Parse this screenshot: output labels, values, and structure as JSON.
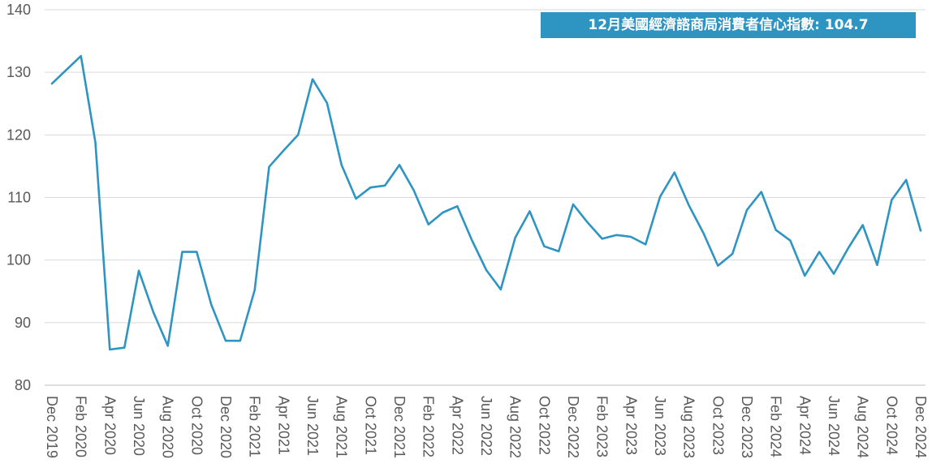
{
  "chart_data": {
    "type": "line",
    "title": "",
    "xlabel": "",
    "ylabel": "",
    "ylim": [
      80,
      140
    ],
    "yticks": [
      80,
      90,
      100,
      110,
      120,
      130,
      140
    ],
    "grid": "horizontal",
    "line_color": "#2e94c2",
    "annotation": {
      "text": "12月美國經濟諮商局消費者信心指數: 104.7",
      "background": "#2e94c2",
      "color": "#ffffff"
    },
    "x_tick_labels": [
      "Dec 2019",
      "Feb 2020",
      "Apr 2020",
      "Jun 2020",
      "Aug 2020",
      "Oct 2020",
      "Dec 2020",
      "Feb 2021",
      "Apr 2021",
      "Jun 2021",
      "Aug 2021",
      "Oct 2021",
      "Dec 2021",
      "Feb 2022",
      "Apr 2022",
      "Jun 2022",
      "Aug 2022",
      "Oct 2022",
      "Dec 2022",
      "Feb 2023",
      "Apr 2023",
      "Jun 2023",
      "Aug 2023",
      "Oct 2023",
      "Dec 2023",
      "Feb 2024",
      "Apr 2024",
      "Jun 2024",
      "Aug 2024",
      "Oct 2024",
      "Dec 2024"
    ],
    "x": [
      "Dec 2019",
      "Jan 2020",
      "Feb 2020",
      "Mar 2020",
      "Apr 2020",
      "May 2020",
      "Jun 2020",
      "Jul 2020",
      "Aug 2020",
      "Sep 2020",
      "Oct 2020",
      "Nov 2020",
      "Dec 2020",
      "Jan 2021",
      "Feb 2021",
      "Mar 2021",
      "Apr 2021",
      "May 2021",
      "Jun 2021",
      "Jul 2021",
      "Aug 2021",
      "Sep 2021",
      "Oct 2021",
      "Nov 2021",
      "Dec 2021",
      "Jan 2022",
      "Feb 2022",
      "Mar 2022",
      "Apr 2022",
      "May 2022",
      "Jun 2022",
      "Jul 2022",
      "Aug 2022",
      "Sep 2022",
      "Oct 2022",
      "Nov 2022",
      "Dec 2022",
      "Jan 2023",
      "Feb 2023",
      "Mar 2023",
      "Apr 2023",
      "May 2023",
      "Jun 2023",
      "Jul 2023",
      "Aug 2023",
      "Sep 2023",
      "Oct 2023",
      "Nov 2023",
      "Dec 2023",
      "Jan 2024",
      "Feb 2024",
      "Mar 2024",
      "Apr 2024",
      "May 2024",
      "Jun 2024",
      "Jul 2024",
      "Aug 2024",
      "Sep 2024",
      "Oct 2024",
      "Nov 2024",
      "Dec 2024"
    ],
    "series": [
      {
        "values": [
          128.2,
          130.4,
          132.6,
          118.8,
          85.7,
          86.0,
          98.3,
          91.7,
          86.3,
          101.3,
          101.3,
          92.9,
          87.1,
          87.1,
          95.2,
          114.9,
          117.5,
          120.0,
          128.9,
          125.1,
          115.2,
          109.8,
          111.6,
          111.9,
          115.2,
          111.1,
          105.7,
          107.6,
          108.6,
          103.2,
          98.4,
          95.3,
          103.6,
          107.8,
          102.2,
          101.4,
          108.9,
          106.0,
          103.4,
          104.0,
          103.7,
          102.5,
          110.1,
          114.0,
          108.7,
          104.3,
          99.1,
          101.0,
          108.0,
          110.9,
          104.8,
          103.1,
          97.5,
          101.3,
          97.8,
          101.9,
          105.6,
          99.2,
          109.6,
          112.8,
          104.7
        ]
      }
    ]
  }
}
